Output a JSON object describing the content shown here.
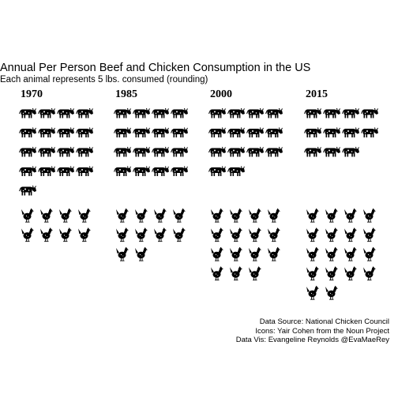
{
  "chart_data": {
    "type": "pictograph",
    "title": "Annual Per Person Beef and Chicken Consumption in the US",
    "subtitle": "Each animal represents 5 lbs. consumed (rounding)",
    "categories": [
      "1970",
      "1985",
      "2000",
      "2015"
    ],
    "series": [
      {
        "name": "Beef",
        "icon": "cow-icon",
        "values": [
          17,
          16,
          14,
          11
        ]
      },
      {
        "name": "Chicken",
        "icon": "chicken-icon",
        "values": [
          8,
          10,
          15,
          18
        ]
      }
    ],
    "color": "#000000"
  },
  "caption": {
    "line1": "Data Source: National Chicken Council",
    "line2": "Icons:  Yair Cohen from the Noun Project",
    "line3": "Data Vis: Evangeline Reynolds @EvaMaeRey"
  }
}
